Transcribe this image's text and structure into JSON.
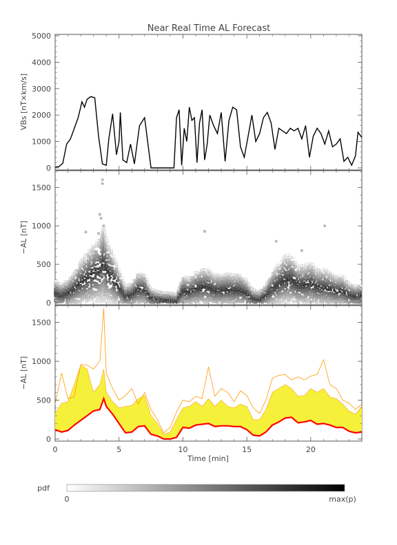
{
  "chart_data": [
    {
      "type": "line",
      "title": "Near Real Time AL Forecast",
      "ylabel": "VBs [nT×km/s]",
      "xlim": [
        0,
        24
      ],
      "ylim": [
        0,
        5000
      ],
      "yticks": [
        0,
        1000,
        2000,
        3000,
        4000,
        5000
      ],
      "series": [
        {
          "color": "#000000",
          "x": [
            0,
            0.3,
            0.6,
            0.9,
            1.2,
            1.5,
            1.8,
            2.1,
            2.3,
            2.5,
            2.8,
            3.1,
            3.4,
            3.7,
            4.0,
            4.2,
            4.5,
            4.8,
            5.0,
            5.1,
            5.3,
            5.6,
            5.9,
            6.2,
            6.6,
            7.0,
            7.5,
            8.0,
            8.5,
            9.0,
            9.3,
            9.5,
            9.7,
            9.9,
            10.1,
            10.3,
            10.5,
            10.7,
            10.9,
            11.1,
            11.3,
            11.5,
            11.7,
            11.9,
            12.1,
            12.4,
            12.7,
            13.0,
            13.3,
            13.6,
            13.9,
            14.2,
            14.5,
            14.8,
            15.1,
            15.4,
            15.7,
            16.0,
            16.3,
            16.6,
            16.9,
            17.2,
            17.5,
            17.8,
            18.1,
            18.4,
            18.7,
            19.0,
            19.3,
            19.6,
            19.9,
            20.2,
            20.5,
            20.8,
            21.1,
            21.4,
            21.7,
            22.0,
            22.3,
            22.6,
            22.9,
            23.2,
            23.5,
            23.7,
            24.0
          ],
          "y": [
            30,
            50,
            180,
            900,
            1100,
            1500,
            1900,
            2500,
            2300,
            2600,
            2700,
            2650,
            1200,
            150,
            100,
            1100,
            2050,
            500,
            1000,
            2100,
            300,
            200,
            900,
            150,
            1600,
            1900,
            0,
            0,
            0,
            0,
            0,
            1900,
            2200,
            100,
            1500,
            1000,
            2300,
            1800,
            1900,
            200,
            1700,
            2200,
            300,
            900,
            2000,
            1600,
            1300,
            2100,
            250,
            1800,
            2300,
            2200,
            800,
            400,
            1200,
            2000,
            1000,
            1300,
            1900,
            2100,
            1700,
            700,
            1500,
            1400,
            1300,
            1500,
            1400,
            1500,
            1100,
            1600,
            400,
            1200,
            1500,
            1300,
            900,
            1400,
            800,
            900,
            1100,
            250,
            400,
            100,
            450,
            1350,
            1150
          ]
        }
      ]
    },
    {
      "type": "heatmap",
      "ylabel": "−AL [nT]",
      "xlim": [
        0,
        24
      ],
      "ylim": [
        0,
        1700
      ],
      "yticks": [
        0,
        500,
        1000,
        1500
      ],
      "center_x": [
        0,
        0.5,
        1.0,
        1.5,
        2.0,
        2.5,
        3.0,
        3.5,
        3.8,
        4.0,
        4.5,
        5.0,
        5.5,
        6.0,
        6.5,
        7.0,
        7.5,
        8.0,
        8.5,
        9.0,
        9.5,
        10.0,
        10.5,
        11.0,
        11.5,
        12.0,
        12.5,
        13.0,
        13.5,
        14.0,
        14.5,
        15.0,
        15.5,
        16.0,
        16.5,
        17.0,
        17.5,
        18.0,
        18.5,
        19.0,
        19.5,
        20.0,
        20.5,
        21.0,
        21.5,
        22.0,
        22.5,
        23.0,
        23.5,
        24.0
      ],
      "center_y": [
        120,
        90,
        120,
        180,
        260,
        320,
        380,
        420,
        520,
        430,
        320,
        200,
        80,
        100,
        170,
        170,
        60,
        40,
        30,
        30,
        20,
        150,
        140,
        180,
        200,
        200,
        160,
        160,
        170,
        160,
        160,
        120,
        50,
        40,
        90,
        180,
        240,
        300,
        300,
        230,
        230,
        250,
        200,
        200,
        180,
        150,
        150,
        100,
        80,
        90
      ],
      "scatter_extra": [
        [
          3.7,
          1600
        ],
        [
          3.7,
          1550
        ],
        [
          3.5,
          1150
        ],
        [
          3.6,
          1100
        ],
        [
          3.8,
          1000
        ],
        [
          3.4,
          900
        ],
        [
          2.4,
          920
        ],
        [
          11.7,
          930
        ],
        [
          21.1,
          1000
        ],
        [
          19.3,
          680
        ],
        [
          17.3,
          800
        ]
      ]
    },
    {
      "type": "area",
      "ylabel": "−AL [nT]",
      "xlabel": "Time [min]",
      "xlim": [
        0,
        24
      ],
      "ylim": [
        0,
        1700
      ],
      "xticks": [
        0,
        5,
        10,
        15,
        20
      ],
      "yticks": [
        0,
        500,
        1000,
        1500
      ],
      "x": [
        0,
        0.5,
        1.0,
        1.5,
        2.0,
        2.5,
        3.0,
        3.5,
        3.8,
        4.0,
        4.5,
        5.0,
        5.5,
        6.0,
        6.5,
        7.0,
        7.5,
        8.0,
        8.5,
        9.0,
        9.5,
        10.0,
        10.5,
        11.0,
        11.5,
        12.0,
        12.5,
        13.0,
        13.5,
        14.0,
        14.5,
        15.0,
        15.5,
        16.0,
        16.5,
        17.0,
        17.5,
        18.0,
        18.5,
        19.0,
        19.5,
        20.0,
        20.5,
        21.0,
        21.5,
        22.0,
        22.5,
        23.0,
        23.5,
        24.0
      ],
      "series": [
        {
          "name": "lower",
          "color": "#ff0000",
          "y": [
            120,
            90,
            110,
            180,
            240,
            300,
            360,
            380,
            520,
            420,
            320,
            200,
            80,
            90,
            160,
            170,
            60,
            40,
            0,
            0,
            20,
            150,
            140,
            180,
            190,
            200,
            160,
            170,
            170,
            160,
            160,
            120,
            50,
            40,
            90,
            180,
            220,
            270,
            280,
            210,
            220,
            240,
            190,
            200,
            180,
            150,
            150,
            100,
            80,
            90
          ]
        },
        {
          "name": "upper",
          "color": "#ffd400",
          "y": [
            330,
            460,
            480,
            700,
            950,
            900,
            600,
            700,
            900,
            600,
            480,
            400,
            420,
            430,
            520,
            560,
            300,
            200,
            60,
            90,
            250,
            400,
            420,
            480,
            420,
            520,
            420,
            500,
            420,
            400,
            450,
            420,
            250,
            250,
            380,
            600,
            650,
            700,
            650,
            550,
            560,
            650,
            600,
            650,
            540,
            520,
            450,
            360,
            320,
            420
          ]
        },
        {
          "name": "max",
          "color": "#ff9900",
          "y": [
            450,
            850,
            520,
            550,
            960,
            950,
            900,
            1000,
            1680,
            850,
            650,
            500,
            560,
            650,
            450,
            600,
            380,
            250,
            80,
            150,
            350,
            500,
            480,
            550,
            520,
            930,
            550,
            650,
            600,
            480,
            620,
            560,
            400,
            330,
            500,
            780,
            820,
            830,
            760,
            800,
            760,
            810,
            830,
            1020,
            700,
            650,
            500,
            460,
            380,
            450
          ]
        }
      ]
    }
  ],
  "legend": {
    "label": "pdf",
    "min_label": "0",
    "max_label": "max(p)"
  }
}
